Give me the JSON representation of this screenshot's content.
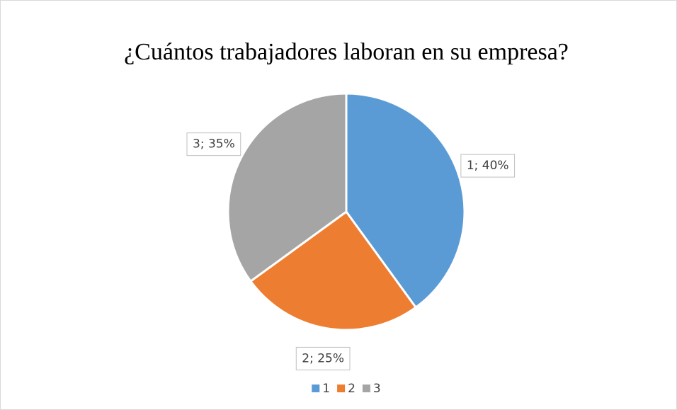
{
  "chart_data": {
    "type": "pie",
    "title": "¿Cuántos trabajadores laboran en su empresa?",
    "categories": [
      "1",
      "2",
      "3"
    ],
    "values": [
      40,
      25,
      35
    ],
    "value_labels": [
      "1; 40%",
      "2; 25%",
      "3; 35%"
    ],
    "colors": [
      "#5b9bd5",
      "#ed7d31",
      "#a5a5a5"
    ],
    "legend": "bottom"
  }
}
